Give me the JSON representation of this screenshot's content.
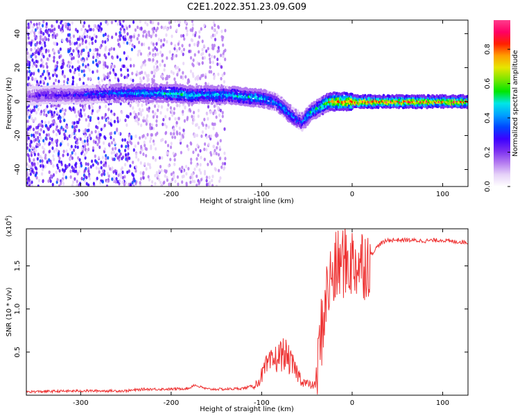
{
  "title": "C2E1.2022.351.23.09.G09",
  "chart_data": [
    {
      "type": "heatmap",
      "xlabel": "Height of straight line (km)",
      "ylabel": "Frequency (Hz)",
      "xlim": [
        -360,
        128
      ],
      "ylim": [
        -50,
        48
      ],
      "x_ticks": [
        -300,
        -200,
        -100,
        0,
        100
      ],
      "y_ticks": [
        -40,
        -20,
        0,
        20,
        40
      ],
      "colorbar": {
        "label": "Normalized spectral amplitude",
        "range": [
          0,
          0.97
        ],
        "ticks": [
          0.0,
          0.2,
          0.4,
          0.6,
          0.8
        ],
        "colors": [
          "#ffffff",
          "#e6d2f8",
          "#b47af0",
          "#7a2ef0",
          "#3c00ff",
          "#0046ff",
          "#00a0ff",
          "#00e6e6",
          "#00e600",
          "#7ae600",
          "#e6e600",
          "#ffa000",
          "#ff2000",
          "#ff0064",
          "#ff3c8c"
        ]
      },
      "trace": {
        "x": [
          -360,
          -340,
          -300,
          -260,
          -220,
          -200,
          -180,
          -160,
          -140,
          -120,
          -100,
          -85,
          -75,
          -65,
          -55,
          -45,
          -35,
          -25,
          -15,
          -5,
          0,
          20,
          60,
          100,
          128
        ],
        "y": [
          3,
          4,
          4,
          5,
          5,
          5,
          4,
          4,
          4,
          3,
          2,
          0,
          -4,
          -9,
          -12,
          -6,
          -3,
          0,
          0,
          0,
          0,
          0,
          0,
          0,
          0
        ],
        "amplitude": [
          0.2,
          0.25,
          0.3,
          0.4,
          0.45,
          0.5,
          0.5,
          0.45,
          0.45,
          0.5,
          0.45,
          0.4,
          0.45,
          0.4,
          0.35,
          0.5,
          0.55,
          0.75,
          0.8,
          0.85,
          0.9,
          0.88,
          0.85,
          0.82,
          0.8
        ]
      },
      "grid": false
    },
    {
      "type": "line",
      "ylabel": "SNR (10 * v/v)",
      "y_multiplier": "(x10^4)",
      "xlabel": "Height of straight line (km)",
      "xlim": [
        -360,
        128
      ],
      "ylim": [
        0,
        1.93
      ],
      "x_ticks": [
        -300,
        -200,
        -100,
        0,
        100
      ],
      "y_ticks": [
        0.5,
        1.0,
        1.5
      ],
      "y_tick_labels": [
        "0.5",
        "1.0",
        "1.5"
      ],
      "color": "#ee3030",
      "series": [
        {
          "x": [
            -360,
            -300,
            -250,
            -230,
            -200,
            -180,
            -175,
            -160,
            -140,
            -120,
            -105,
            -95,
            -85,
            -75,
            -65,
            -55,
            -45,
            -40,
            -35,
            -30,
            -25,
            -20,
            -15,
            -10,
            -5,
            0,
            10,
            20,
            30,
            40,
            60,
            80,
            100,
            110,
            120,
            128
          ],
          "y": [
            0.04,
            0.05,
            0.05,
            0.07,
            0.07,
            0.08,
            0.12,
            0.07,
            0.07,
            0.08,
            0.12,
            0.3,
            0.38,
            0.45,
            0.3,
            0.15,
            0.1,
            0.12,
            0.7,
            1.1,
            1.35,
            1.45,
            1.55,
            1.6,
            1.6,
            1.58,
            1.58,
            1.62,
            1.75,
            1.8,
            1.8,
            1.79,
            1.8,
            1.78,
            1.78,
            1.77
          ]
        }
      ],
      "grid": false
    }
  ]
}
